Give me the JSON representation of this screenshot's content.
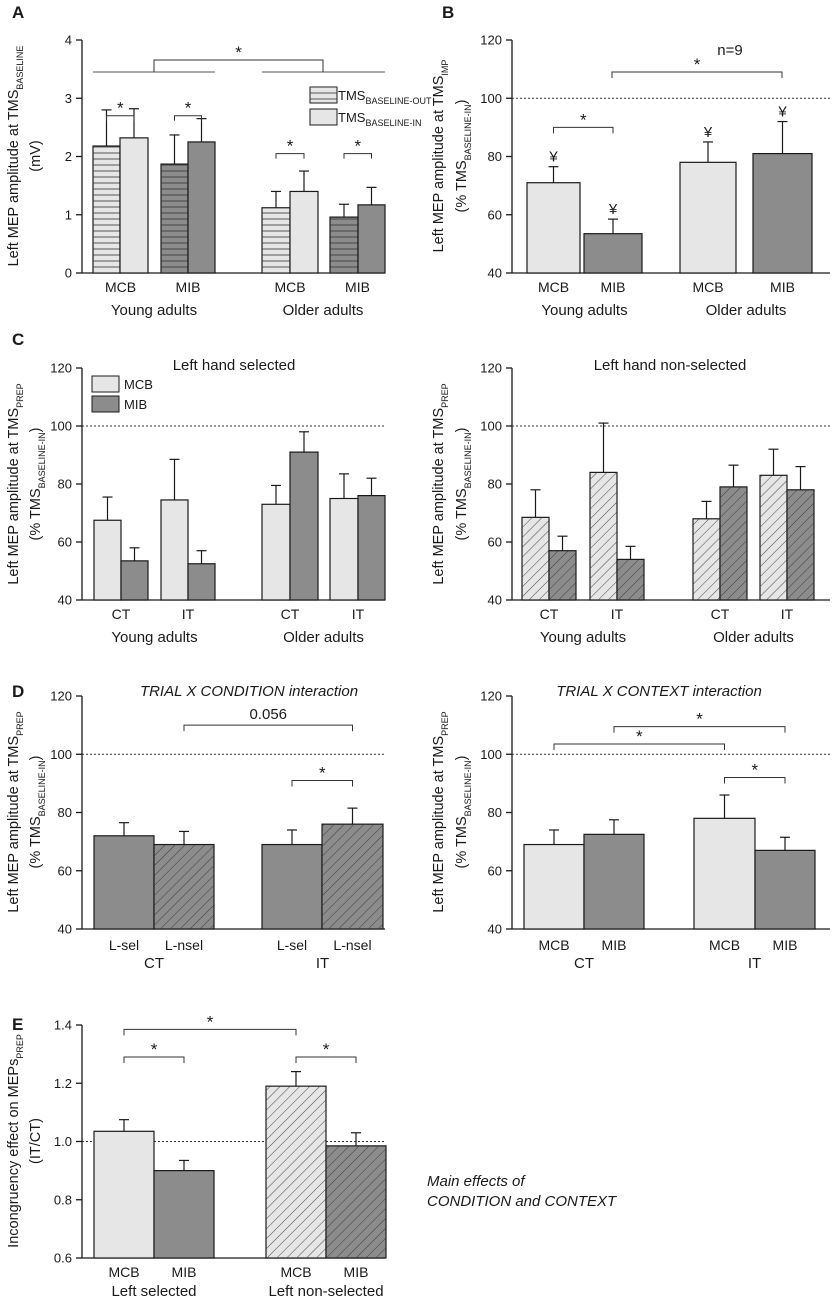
{
  "colors": {
    "light": "#e6e6e6",
    "dark": "#8c8c8c",
    "axis": "#1a1a1a"
  },
  "chart_data": [
    {
      "id": "A",
      "panel": "A",
      "type": "bar",
      "ylabel": "Left MEP amplitude at TMS",
      "ylabel_sub": "BASELINE",
      "ylabel_line2": "(mV)",
      "ylim": [
        0,
        4
      ],
      "yticks": [
        "0",
        "1",
        "2",
        "3",
        "4"
      ],
      "groups": [
        {
          "name": "Young adults",
          "categories": [
            {
              "label": "MCB",
              "bars": [
                {
                  "series": "TMS BASELINE-OUT",
                  "value": 2.18,
                  "err": 0.62,
                  "fill": "light",
                  "hatch": "horizontal"
                },
                {
                  "series": "TMS BASELINE-IN",
                  "value": 2.32,
                  "err": 0.5,
                  "fill": "light"
                }
              ]
            },
            {
              "label": "MIB",
              "bars": [
                {
                  "series": "TMS BASELINE-OUT",
                  "value": 1.87,
                  "err": 0.5,
                  "fill": "dark",
                  "hatch": "horizontal"
                },
                {
                  "series": "TMS BASELINE-IN",
                  "value": 2.25,
                  "err": 0.4,
                  "fill": "dark"
                }
              ]
            }
          ]
        },
        {
          "name": "Older adults",
          "categories": [
            {
              "label": "MCB",
              "bars": [
                {
                  "series": "TMS BASELINE-OUT",
                  "value": 1.12,
                  "err": 0.28,
                  "fill": "light",
                  "hatch": "horizontal"
                },
                {
                  "series": "TMS BASELINE-IN",
                  "value": 1.4,
                  "err": 0.35,
                  "fill": "light"
                }
              ]
            },
            {
              "label": "MIB",
              "bars": [
                {
                  "series": "TMS BASELINE-OUT",
                  "value": 0.96,
                  "err": 0.22,
                  "fill": "dark",
                  "hatch": "horizontal"
                },
                {
                  "series": "TMS BASELINE-IN",
                  "value": 1.17,
                  "err": 0.3,
                  "fill": "dark"
                }
              ]
            }
          ]
        }
      ],
      "legend": [
        {
          "text": "TMS",
          "sub": "BASELINE-OUT",
          "hatch": "horizontal"
        },
        {
          "text": "TMS",
          "sub": "BASELINE-IN"
        }
      ],
      "significance": [
        {
          "from": [
            0,
            0
          ],
          "to": [
            0,
            1
          ],
          "level": 2.7,
          "label": "*"
        },
        {
          "from": [
            0,
            2
          ],
          "to": [
            0,
            3
          ],
          "level": 2.7,
          "label": "*"
        },
        {
          "from": [
            1,
            0
          ],
          "to": [
            1,
            1
          ],
          "level": 2.05,
          "label": "*"
        },
        {
          "from": [
            1,
            2
          ],
          "to": [
            1,
            3
          ],
          "level": 2.05,
          "label": "*"
        },
        {
          "from": [
            0,
            0
          ],
          "to": [
            1,
            3
          ],
          "level": 3.35,
          "label": "*",
          "style": "group"
        }
      ]
    },
    {
      "id": "B",
      "panel": "B",
      "type": "bar",
      "ylabel": "Left MEP amplitude at TMS",
      "ylabel_sub": "IMP",
      "ylabel_line2": "(% TMS",
      "ylabel_line2_sub": "BASELINE-IN",
      "ylabel_line2_end": ")",
      "ylim": [
        40,
        120
      ],
      "yticks": [
        "40",
        "60",
        "80",
        "100",
        "120"
      ],
      "reference": 100,
      "note": "n=9",
      "groups": [
        {
          "name": "Young adults",
          "categories": [
            {
              "label": "MCB",
              "bars": [
                {
                  "value": 71,
                  "err": 5.5,
                  "fill": "light",
                  "mark": "¥"
                }
              ]
            },
            {
              "label": "MIB",
              "bars": [
                {
                  "value": 53.5,
                  "err": 5,
                  "fill": "dark",
                  "mark": "¥"
                }
              ]
            }
          ]
        },
        {
          "name": "Older adults",
          "categories": [
            {
              "label": "MCB",
              "bars": [
                {
                  "value": 78,
                  "err": 7,
                  "fill": "light",
                  "mark": "¥"
                }
              ]
            },
            {
              "label": "MIB",
              "bars": [
                {
                  "value": 81,
                  "err": 11,
                  "fill": "dark",
                  "mark": "¥"
                }
              ]
            }
          ]
        }
      ],
      "significance": [
        {
          "from": [
            0,
            0
          ],
          "to": [
            0,
            1
          ],
          "level": 90,
          "label": "*"
        },
        {
          "from": [
            0,
            1
          ],
          "to": [
            1,
            1
          ],
          "level": 110,
          "label": "*",
          "style": "gap"
        }
      ]
    },
    {
      "id": "C1",
      "panel": "C",
      "type": "bar",
      "title": "Left hand selected",
      "ylabel": "Left MEP amplitude at TMS",
      "ylabel_sub": "PREP",
      "ylabel_line2": "(% TMS",
      "ylabel_line2_sub": "BASELINE-IN",
      "ylabel_line2_end": ")",
      "ylim": [
        40,
        120
      ],
      "yticks": [
        "40",
        "60",
        "80",
        "100",
        "120"
      ],
      "reference": 100,
      "legend": [
        {
          "text": "MCB",
          "fill": "light"
        },
        {
          "text": "MIB",
          "fill": "dark"
        }
      ],
      "groups": [
        {
          "name": "Young adults",
          "categories": [
            {
              "label": "CT",
              "bars": [
                {
                  "series": "MCB",
                  "value": 67.5,
                  "err": 8,
                  "fill": "light"
                },
                {
                  "series": "MIB",
                  "value": 53.5,
                  "err": 4.5,
                  "fill": "dark"
                }
              ]
            },
            {
              "label": "IT",
              "bars": [
                {
                  "series": "MCB",
                  "value": 74.5,
                  "err": 14,
                  "fill": "light"
                },
                {
                  "series": "MIB",
                  "value": 52.5,
                  "err": 4.5,
                  "fill": "dark"
                }
              ]
            }
          ]
        },
        {
          "name": "Older adults",
          "categories": [
            {
              "label": "CT",
              "bars": [
                {
                  "series": "MCB",
                  "value": 73,
                  "err": 6.5,
                  "fill": "light"
                },
                {
                  "series": "MIB",
                  "value": 91,
                  "err": 7,
                  "fill": "dark"
                }
              ]
            },
            {
              "label": "IT",
              "bars": [
                {
                  "series": "MCB",
                  "value": 75,
                  "err": 8.5,
                  "fill": "light"
                },
                {
                  "series": "MIB",
                  "value": 76,
                  "err": 6,
                  "fill": "dark"
                }
              ]
            }
          ]
        }
      ]
    },
    {
      "id": "C2",
      "panel": "",
      "type": "bar",
      "title": "Left hand non-selected",
      "ylabel": "Left MEP amplitude at TMS",
      "ylabel_sub": "PREP",
      "ylabel_line2": "(% TMS",
      "ylabel_line2_sub": "BASELINE-IN",
      "ylabel_line2_end": ")",
      "ylim": [
        40,
        120
      ],
      "yticks": [
        "40",
        "60",
        "80",
        "100",
        "120"
      ],
      "reference": 100,
      "groups": [
        {
          "name": "Young adults",
          "categories": [
            {
              "label": "CT",
              "bars": [
                {
                  "series": "MCB",
                  "value": 68.5,
                  "err": 9.5,
                  "fill": "light",
                  "hatch": "diagonal"
                },
                {
                  "series": "MIB",
                  "value": 57,
                  "err": 5,
                  "fill": "dark",
                  "hatch": "diagonal"
                }
              ]
            },
            {
              "label": "IT",
              "bars": [
                {
                  "series": "MCB",
                  "value": 84,
                  "err": 17,
                  "fill": "light",
                  "hatch": "diagonal"
                },
                {
                  "series": "MIB",
                  "value": 54,
                  "err": 4.5,
                  "fill": "dark",
                  "hatch": "diagonal"
                }
              ]
            }
          ]
        },
        {
          "name": "Older adults",
          "categories": [
            {
              "label": "CT",
              "bars": [
                {
                  "series": "MCB",
                  "value": 68,
                  "err": 6,
                  "fill": "light",
                  "hatch": "diagonal"
                },
                {
                  "series": "MIB",
                  "value": 79,
                  "err": 7.5,
                  "fill": "dark",
                  "hatch": "diagonal"
                }
              ]
            },
            {
              "label": "IT",
              "bars": [
                {
                  "series": "MCB",
                  "value": 83,
                  "err": 9,
                  "fill": "light",
                  "hatch": "diagonal"
                },
                {
                  "series": "MIB",
                  "value": 78,
                  "err": 8,
                  "fill": "dark",
                  "hatch": "diagonal"
                }
              ]
            }
          ]
        }
      ]
    },
    {
      "id": "D1",
      "panel": "D",
      "type": "bar",
      "title": "TRIAL X CONDITION interaction",
      "title_italic": true,
      "ylabel": "Left MEP amplitude at TMS",
      "ylabel_sub": "PREP",
      "ylabel_line2": "(% TMS",
      "ylabel_line2_sub": "BASELINE-IN",
      "ylabel_line2_end": ")",
      "ylim": [
        40,
        120
      ],
      "yticks": [
        "40",
        "60",
        "80",
        "100",
        "120"
      ],
      "reference": 100,
      "groups": [
        {
          "name": "CT",
          "categories": [
            {
              "label": "L-sel",
              "bars": [
                {
                  "value": 72,
                  "err": 4.5,
                  "fill": "dark"
                }
              ]
            },
            {
              "label": "L-nsel",
              "bars": [
                {
                  "value": 69,
                  "err": 4.5,
                  "fill": "dark",
                  "hatch": "diagonal"
                }
              ]
            }
          ]
        },
        {
          "name": "IT",
          "categories": [
            {
              "label": "L-sel",
              "bars": [
                {
                  "value": 69,
                  "err": 5,
                  "fill": "dark"
                }
              ]
            },
            {
              "label": "L-nsel",
              "bars": [
                {
                  "value": 76,
                  "err": 5.5,
                  "fill": "dark",
                  "hatch": "diagonal"
                }
              ]
            }
          ]
        }
      ],
      "significance": [
        {
          "from": [
            1,
            0
          ],
          "to": [
            1,
            1
          ],
          "level": 91,
          "label": "*"
        },
        {
          "from": [
            0,
            1
          ],
          "to": [
            1,
            1
          ],
          "level": 110,
          "label": "0.056"
        }
      ]
    },
    {
      "id": "D2",
      "panel": "",
      "type": "bar",
      "title": "TRIAL X CONTEXT interaction",
      "title_italic": true,
      "ylabel": "Left MEP amplitude at TMS",
      "ylabel_sub": "PREP",
      "ylabel_line2": "(% TMS",
      "ylabel_line2_sub": "BASELINE-IN",
      "ylabel_line2_end": ")",
      "ylim": [
        40,
        120
      ],
      "yticks": [
        "40",
        "60",
        "80",
        "100",
        "120"
      ],
      "reference": 100,
      "groups": [
        {
          "name": "CT",
          "categories": [
            {
              "label": "MCB",
              "bars": [
                {
                  "value": 69,
                  "err": 5,
                  "fill": "light"
                }
              ]
            },
            {
              "label": "MIB",
              "bars": [
                {
                  "value": 72.5,
                  "err": 5,
                  "fill": "dark"
                }
              ]
            }
          ]
        },
        {
          "name": "IT",
          "categories": [
            {
              "label": "MCB",
              "bars": [
                {
                  "value": 78,
                  "err": 8,
                  "fill": "light"
                }
              ]
            },
            {
              "label": "MIB",
              "bars": [
                {
                  "value": 67,
                  "err": 4.5,
                  "fill": "dark"
                }
              ]
            }
          ]
        }
      ],
      "significance": [
        {
          "from": [
            1,
            0
          ],
          "to": [
            1,
            1
          ],
          "level": 92,
          "label": "*"
        },
        {
          "from": [
            0,
            0
          ],
          "to": [
            1,
            0
          ],
          "level": 103.5,
          "label": "*"
        },
        {
          "from": [
            0,
            1
          ],
          "to": [
            1,
            1
          ],
          "level": 109.5,
          "label": "*"
        }
      ]
    },
    {
      "id": "E",
      "panel": "E",
      "type": "bar",
      "ylabel": "Incongruency effect on MEPs",
      "ylabel_sub": "PREP",
      "ylabel_line2": "(IT/CT)",
      "ylim": [
        0.6,
        1.4
      ],
      "yticks": [
        "0.6",
        "0.8",
        "1.0",
        "1.2",
        "1.4"
      ],
      "reference": 1.0,
      "groups": [
        {
          "name": "Left selected",
          "categories": [
            {
              "label": "MCB",
              "bars": [
                {
                  "value": 1.035,
                  "err": 0.04,
                  "fill": "light"
                }
              ]
            },
            {
              "label": "MIB",
              "bars": [
                {
                  "value": 0.9,
                  "err": 0.035,
                  "fill": "dark"
                }
              ]
            }
          ]
        },
        {
          "name": "Left non-selected",
          "categories": [
            {
              "label": "MCB",
              "bars": [
                {
                  "value": 1.19,
                  "err": 0.05,
                  "fill": "light",
                  "hatch": "diagonal"
                }
              ]
            },
            {
              "label": "MIB",
              "bars": [
                {
                  "value": 0.985,
                  "err": 0.045,
                  "fill": "dark",
                  "hatch": "diagonal"
                }
              ]
            }
          ]
        }
      ],
      "significance": [
        {
          "from": [
            0,
            0
          ],
          "to": [
            0,
            1
          ],
          "level": 1.29,
          "label": "*"
        },
        {
          "from": [
            1,
            0
          ],
          "to": [
            1,
            1
          ],
          "level": 1.29,
          "label": "*"
        },
        {
          "from": [
            0,
            0
          ],
          "to": [
            1,
            0
          ],
          "level": 1.385,
          "label": "*"
        }
      ],
      "note_lines": [
        "Main effects of",
        "CONDITION and CONTEXT"
      ]
    }
  ]
}
